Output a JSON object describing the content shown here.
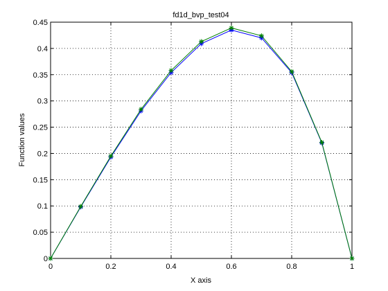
{
  "chart_data": {
    "type": "line",
    "title": "fd1d_bvp_test04",
    "xlabel": "X axis",
    "ylabel": "Function values",
    "x": [
      0,
      0.1,
      0.2,
      0.3,
      0.4,
      0.5,
      0.6,
      0.7,
      0.8,
      0.9,
      1
    ],
    "series": [
      {
        "color": "#0000ff",
        "values": [
          0,
          0.098,
          0.193,
          0.281,
          0.354,
          0.409,
          0.435,
          0.42,
          0.354,
          0.22,
          0
        ]
      },
      {
        "color": "#008000",
        "values": [
          0,
          0.099,
          0.195,
          0.284,
          0.358,
          0.413,
          0.439,
          0.424,
          0.356,
          0.221,
          0
        ]
      }
    ],
    "xlim": [
      0,
      1
    ],
    "xticks": [
      0,
      0.2,
      0.4,
      0.6,
      0.8,
      1
    ],
    "ylim": [
      0,
      0.45
    ],
    "yticks": [
      0,
      0.05,
      0.1,
      0.15,
      0.2,
      0.25,
      0.3,
      0.35,
      0.4,
      0.45
    ],
    "grid": true,
    "marker": "*"
  }
}
